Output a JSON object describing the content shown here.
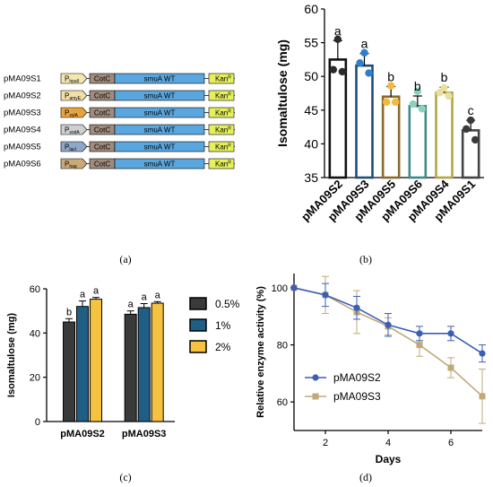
{
  "figure": {
    "captions": [
      "(a)",
      "(b)",
      "(c)",
      "(d)"
    ]
  },
  "panel_a": {
    "constructs": [
      {
        "name": "pMA09S1",
        "promoter": "P",
        "promoter_sub": "hpaII",
        "promoter_color": "#f3e6b0",
        "anchor": "CotC",
        "gene": "smuA WT",
        "marker": "Kan",
        "marker_sup": "R"
      },
      {
        "name": "pMA09S2",
        "promoter": "P",
        "promoter_sub": "amyE",
        "promoter_color": "#f0dfa8",
        "anchor": "CotC",
        "gene": "smuA WT",
        "marker": "Kan",
        "marker_sup": "R"
      },
      {
        "name": "pMA09S3",
        "promoter": "P",
        "promoter_sub": "xylA",
        "promoter_color": "#e8a43c",
        "anchor": "CotC",
        "gene": "smuA WT",
        "marker": "Kan",
        "marker_sup": "R"
      },
      {
        "name": "pMA09S4",
        "promoter": "P",
        "promoter_sub": "sodA",
        "promoter_color": "#cfcfcf",
        "anchor": "CotC",
        "gene": "smuA WT",
        "marker": "Kan",
        "marker_sup": "R"
      },
      {
        "name": "pMA09S5",
        "promoter": "P",
        "promoter_sub": "lacI",
        "promoter_color": "#8fa7c9",
        "anchor": "CotC",
        "gene": "smuA WT",
        "marker": "Kan",
        "marker_sup": "R"
      },
      {
        "name": "pMA09S6",
        "promoter": "P",
        "promoter_sub": "hag",
        "promoter_color": "#c9a97a",
        "anchor": "CotC",
        "gene": "smuA WT",
        "marker": "Kan",
        "marker_sup": "R"
      }
    ],
    "colors": {
      "anchor": "#a08b7d",
      "gene": "#5aa7e0",
      "marker": "#e6f05a"
    }
  },
  "chart_data": [
    {
      "panel": "b",
      "type": "bar",
      "ylabel": "Isomaltulose (mg)",
      "ylim": [
        35,
        60
      ],
      "yticks": [
        35,
        40,
        45,
        50,
        55,
        60
      ],
      "categories": [
        "pMA09S2",
        "pMA09S3",
        "pMA09S5",
        "pMA09S6",
        "pMA09S4",
        "pMA09S1"
      ],
      "values": [
        52.5,
        51.6,
        47.0,
        45.6,
        47.6,
        42.0
      ],
      "errors": [
        2.8,
        1.8,
        1.5,
        1.5,
        0.8,
        1.5
      ],
      "letters": [
        "a",
        "a",
        "b",
        "b",
        "b",
        "c"
      ],
      "edge_colors": [
        "#111111",
        "#1f4e79",
        "#8a6a2c",
        "#3d8a8a",
        "#b3a743",
        "#444444"
      ],
      "points": [
        {
          "values": [
            55.5,
            51.0,
            50.7
          ],
          "color": "#2b2b2b"
        },
        {
          "values": [
            53.5,
            52.0,
            50.5
          ],
          "color": "#2e7fd0"
        },
        {
          "values": [
            48.6,
            46.2,
            46.2
          ],
          "color": "#f4b93a"
        },
        {
          "values": [
            47.8,
            45.9,
            45.2
          ],
          "color": "#8fd1b8"
        },
        {
          "values": [
            48.3,
            47.6,
            47.1
          ],
          "color": "#e8dfa0"
        },
        {
          "values": [
            43.5,
            42.2,
            40.6
          ],
          "color": "#3a3a3a"
        }
      ],
      "grid": false
    },
    {
      "panel": "c",
      "type": "bar",
      "ylabel": "Isomaltulose (mg)",
      "ylim": [
        0,
        60
      ],
      "yticks": [
        0,
        20,
        40,
        60
      ],
      "categories": [
        "pMA09S2",
        "pMA09S3"
      ],
      "series": [
        {
          "name": "0.5%",
          "values": [
            45.0,
            48.5
          ],
          "errors": [
            1.5,
            1.5
          ],
          "letters": [
            "b",
            "a"
          ],
          "color": "#3a3a3a"
        },
        {
          "name": "1%",
          "values": [
            52.0,
            51.5
          ],
          "errors": [
            2.5,
            1.8
          ],
          "letters": [
            "a",
            "a"
          ],
          "color": "#1f5f86"
        },
        {
          "name": "2%",
          "values": [
            55.3,
            53.5
          ],
          "errors": [
            0.8,
            0.7
          ],
          "letters": [
            "a",
            "a"
          ],
          "color": "#f5c242"
        }
      ],
      "legend_position": "right",
      "grid": false
    },
    {
      "panel": "d",
      "type": "line",
      "xlabel": "Days",
      "ylabel": "Relative enzyme activity (%)",
      "xlim": [
        1,
        7
      ],
      "ylim": [
        50,
        105
      ],
      "xticks": [
        2,
        4,
        6
      ],
      "yticks": [
        60,
        80,
        100
      ],
      "x": [
        1,
        2,
        3,
        4,
        5,
        6,
        7
      ],
      "series": [
        {
          "name": "pMA09S2",
          "values": [
            100,
            97.5,
            93,
            87,
            84,
            84,
            77
          ],
          "errors": [
            0,
            4,
            4,
            4,
            2.5,
            2.5,
            3
          ],
          "color": "#3a5fb5",
          "marker": "circle"
        },
        {
          "name": "pMA09S3",
          "values": [
            100,
            97.5,
            91.5,
            86.5,
            80,
            72,
            62
          ],
          "errors": [
            0,
            6.5,
            7.5,
            3,
            4,
            3.5,
            9.5
          ],
          "color": "#bfa97a",
          "marker": "square"
        }
      ],
      "legend_position": "inside-lower-left",
      "grid": false
    }
  ]
}
